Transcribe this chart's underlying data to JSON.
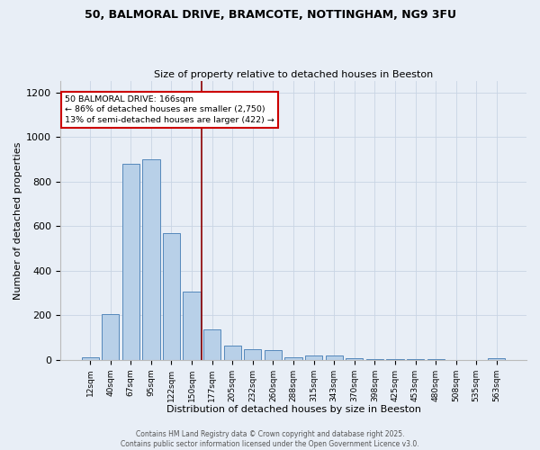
{
  "title1": "50, BALMORAL DRIVE, BRAMCOTE, NOTTINGHAM, NG9 3FU",
  "title2": "Size of property relative to detached houses in Beeston",
  "xlabel": "Distribution of detached houses by size in Beeston",
  "ylabel": "Number of detached properties",
  "bar_labels": [
    "12sqm",
    "40sqm",
    "67sqm",
    "95sqm",
    "122sqm",
    "150sqm",
    "177sqm",
    "205sqm",
    "232sqm",
    "260sqm",
    "288sqm",
    "315sqm",
    "343sqm",
    "370sqm",
    "398sqm",
    "425sqm",
    "453sqm",
    "480sqm",
    "508sqm",
    "535sqm",
    "563sqm"
  ],
  "bar_values": [
    10,
    205,
    880,
    900,
    570,
    305,
    135,
    65,
    47,
    42,
    12,
    20,
    20,
    8,
    3,
    3,
    3,
    3,
    0,
    0,
    8
  ],
  "bar_color": "#b8d0e8",
  "bar_edgecolor": "#5588bb",
  "bg_color": "#e8eef6",
  "vline_x": 5.5,
  "vline_color": "#8b0000",
  "annotation_title": "50 BALMORAL DRIVE: 166sqm",
  "annotation_line1": "← 86% of detached houses are smaller (2,750)",
  "annotation_line2": "13% of semi-detached houses are larger (422) →",
  "annotation_box_color": "#ffffff",
  "annotation_border_color": "#cc0000",
  "ylim": [
    0,
    1250
  ],
  "yticks": [
    0,
    200,
    400,
    600,
    800,
    1000,
    1200
  ],
  "footer1": "Contains HM Land Registry data © Crown copyright and database right 2025.",
  "footer2": "Contains public sector information licensed under the Open Government Licence v3.0."
}
